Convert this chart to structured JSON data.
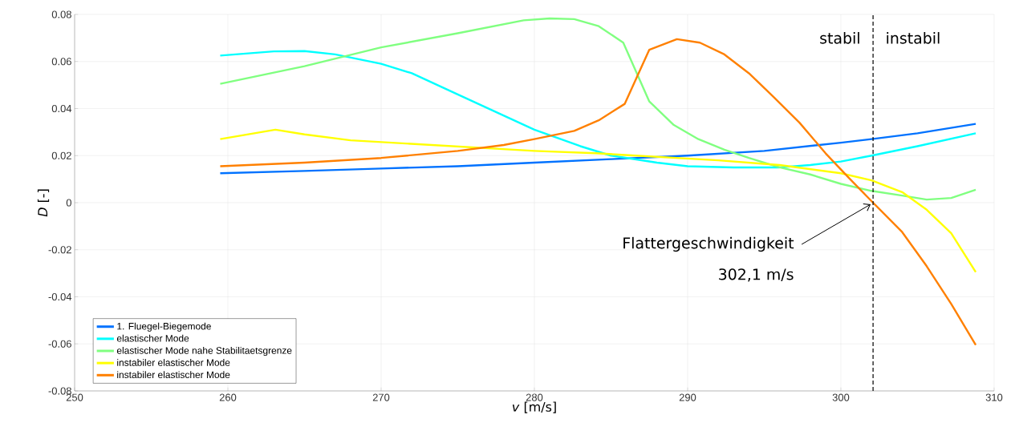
{
  "chart_data": {
    "type": "line",
    "xlabel": "*v* [m/s]",
    "ylabel": "*D* [-]",
    "xlim": [
      250,
      310
    ],
    "xticks": [
      250,
      260,
      270,
      280,
      290,
      300,
      310
    ],
    "ylim": [
      -0.08,
      0.08
    ],
    "yticks": [
      -0.08,
      -0.06,
      -0.04,
      -0.02,
      0,
      0.02,
      0.04,
      0.06,
      0.08
    ],
    "grid": true,
    "legend": "bottom left",
    "line_style": "solid",
    "series": [
      {
        "name": "1. Fluegel-Biegemode",
        "color": "#0072ff",
        "x": [
          259.5,
          265,
          270,
          275,
          280,
          285,
          290,
          295,
          300,
          302,
          305,
          308.8
        ],
        "values": [
          0.0125,
          0.0135,
          0.0145,
          0.0155,
          0.017,
          0.0185,
          0.02,
          0.022,
          0.0255,
          0.027,
          0.0295,
          0.0335
        ]
      },
      {
        "name": "elastischer Mode",
        "color": "#00ffff",
        "x": [
          259.5,
          263,
          265,
          267,
          270,
          272,
          275,
          280,
          283,
          285,
          288,
          290,
          293,
          296,
          298,
          300,
          302,
          305,
          308.8
        ],
        "values": [
          0.0625,
          0.0643,
          0.0644,
          0.063,
          0.059,
          0.055,
          0.046,
          0.031,
          0.024,
          0.02,
          0.017,
          0.0155,
          0.015,
          0.015,
          0.016,
          0.0175,
          0.02,
          0.024,
          0.0295
        ]
      },
      {
        "name": "elastischer Mode nahe Stabilitaetsgrenze",
        "color": "#80ff80",
        "x": [
          259.5,
          265,
          270,
          275,
          279.3,
          281,
          282.6,
          284.2,
          285.8,
          287.5,
          289.1,
          290.7,
          292.4,
          294,
          296,
          298,
          300,
          302,
          304,
          305.6,
          307.2,
          308.8
        ],
        "values": [
          0.0505,
          0.058,
          0.066,
          0.072,
          0.0775,
          0.0783,
          0.078,
          0.075,
          0.068,
          0.043,
          0.033,
          0.027,
          0.0225,
          0.019,
          0.015,
          0.012,
          0.008,
          0.005,
          0.003,
          0.0013,
          0.002,
          0.0055
        ]
      },
      {
        "name": "instabiler elastischer Mode",
        "color": "#ffff00",
        "x": [
          259.5,
          263.1,
          265,
          268,
          272,
          276,
          280,
          284,
          288,
          292,
          296,
          300,
          302,
          304,
          305.6,
          307.2,
          308.8
        ],
        "values": [
          0.027,
          0.031,
          0.029,
          0.0265,
          0.025,
          0.0235,
          0.022,
          0.021,
          0.0195,
          0.018,
          0.016,
          0.0125,
          0.0095,
          0.0045,
          -0.003,
          -0.013,
          -0.0295
        ]
      },
      {
        "name": "instabiler elastischer Mode",
        "color": "#ff8000",
        "x": [
          259.5,
          265,
          270,
          275,
          278,
          280,
          282.6,
          284.2,
          285.9,
          287.5,
          289.3,
          290.8,
          292.4,
          294,
          295.6,
          297.3,
          299,
          300.6,
          302.1,
          304,
          305.6,
          307.2,
          308.8
        ],
        "values": [
          0.0155,
          0.017,
          0.019,
          0.022,
          0.0245,
          0.027,
          0.0305,
          0.035,
          0.042,
          0.065,
          0.0695,
          0.068,
          0.063,
          0.055,
          0.045,
          0.034,
          0.021,
          0.01,
          0,
          -0.0125,
          -0.027,
          -0.043,
          -0.0605
        ]
      }
    ],
    "ref_lines": [
      {
        "axis": "x",
        "value": 302.1,
        "color": "#000000",
        "line_style": "dashed"
      }
    ],
    "annotations": [
      "stabil",
      "instabil",
      {
        "text": "Flattergeschwindigkeit",
        "x": 302.1,
        "y": 0
      },
      "302,1 m/s"
    ]
  }
}
